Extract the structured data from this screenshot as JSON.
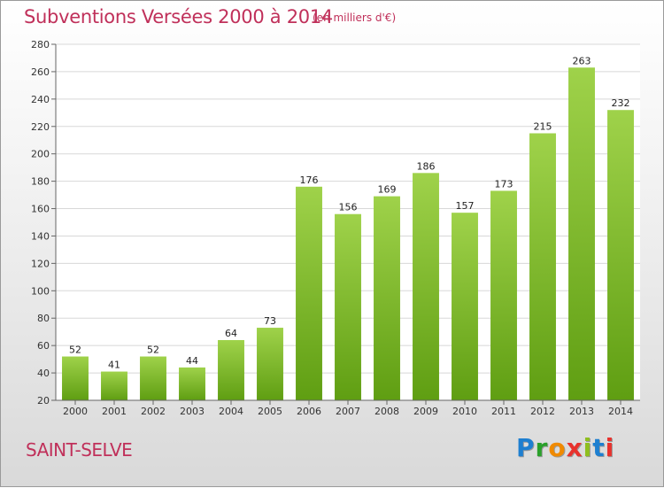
{
  "header": {
    "title": "Subventions Versées 2000 à 2014",
    "subtitle": "(en milliers d'€)"
  },
  "footer": {
    "town": "SAINT-SELVE",
    "logo_letters": [
      "P",
      "r",
      "o",
      "x",
      "i",
      "t",
      "i"
    ],
    "logo_colors": [
      "#1e7fd0",
      "#2aa02a",
      "#f08a00",
      "#e8322d",
      "#8fbf1e",
      "#1e7fd0",
      "#e8322d"
    ]
  },
  "chart_data": {
    "type": "bar",
    "title": "Subventions Versées 2000 à 2014",
    "subtitle": "(en milliers d'€)",
    "categories": [
      "2000",
      "2001",
      "2002",
      "2003",
      "2004",
      "2005",
      "2006",
      "2007",
      "2008",
      "2009",
      "2010",
      "2011",
      "2012",
      "2013",
      "2014"
    ],
    "values": [
      52,
      41,
      52,
      44,
      64,
      73,
      176,
      156,
      169,
      186,
      157,
      173,
      215,
      263,
      232
    ],
    "ylim": [
      20,
      280
    ],
    "yticks": [
      20,
      40,
      60,
      80,
      100,
      120,
      140,
      160,
      180,
      200,
      220,
      240,
      260,
      280
    ],
    "grid": true,
    "bar_color_top": "#9fd24a",
    "bar_color_bottom": "#5f9e12"
  }
}
